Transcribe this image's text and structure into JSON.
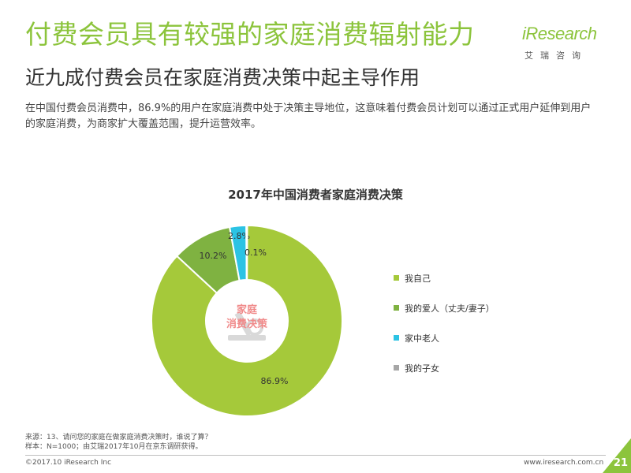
{
  "header": {
    "title": "付费会员具有较强的家庭消费辐射能力",
    "subtitle": "近九成付费会员在家庭消费决策中起主导作用",
    "description": "在中国付费会员消费中，86.9%的用户在家庭消费中处于决策主导地位，这意味着付费会员计划可以通过正式用户延伸到用户的家庭消费，为商家扩大覆盖范围，提升运营效率。"
  },
  "logo": {
    "wordmark": "iResearch",
    "tagline": "艾瑞咨询"
  },
  "center_label": {
    "line1": "家庭",
    "line2": "消费决策"
  },
  "chart_data": {
    "type": "pie",
    "title": "2017年中国消费者家庭消费决策",
    "donut": true,
    "legend_position": "right",
    "series": [
      {
        "name": "我自己",
        "value": 86.9,
        "label": "86.9%",
        "color": "#a5c93a"
      },
      {
        "name": "我的爱人（丈夫/妻子）",
        "value": 10.2,
        "label": "10.2%",
        "color": "#7fb241"
      },
      {
        "name": "家中老人",
        "value": 2.8,
        "label": "2.8%",
        "color": "#2cc3e4"
      },
      {
        "name": "我的子女",
        "value": 0.1,
        "label": "0.1%",
        "color": "#a6a6a6"
      }
    ]
  },
  "footer": {
    "source_line1": "来源：13、请问您的家庭在做家庭消费决策时，谁说了算？",
    "source_line2": "样本：N=1000；由艾瑞2017年10月在京东调研获得。",
    "copyright": "©2017.10 iResearch Inc",
    "website": "www.iresearch.com.cn",
    "page_number": "21"
  }
}
